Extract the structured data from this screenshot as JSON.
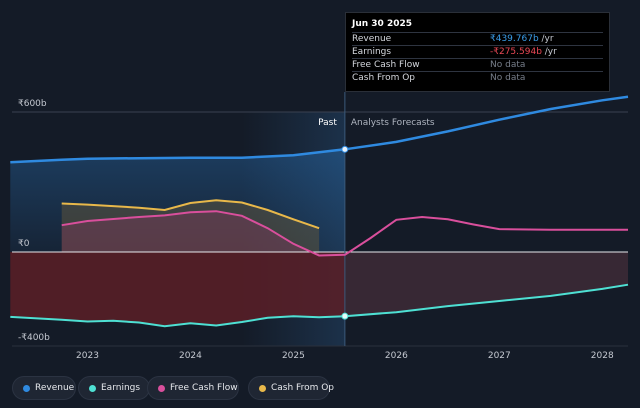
{
  "tooltip": {
    "date": "Jun 30 2025",
    "rows": [
      {
        "label": "Revenue",
        "value": "₹439.767b",
        "unit": " /yr"
      },
      {
        "label": "Earnings",
        "value": "-₹275.594b",
        "unit": " /yr"
      },
      {
        "label": "Free Cash Flow",
        "value": "No data",
        "unit": ""
      },
      {
        "label": "Cash From Op",
        "value": "No data",
        "unit": ""
      }
    ]
  },
  "legend": [
    {
      "label": "Revenue",
      "color": "#2f8ae0"
    },
    {
      "label": "Earnings",
      "color": "#4ee0d3"
    },
    {
      "label": "Free Cash Flow",
      "color": "#d94f9c"
    },
    {
      "label": "Cash From Op",
      "color": "#e8b84a"
    }
  ],
  "chart_data": {
    "type": "area",
    "ylim": [
      -480,
      640
    ],
    "y_ticks": [
      {
        "value": 600,
        "label": "₹600b"
      },
      {
        "value": 0,
        "label": "₹0"
      },
      {
        "value": -400,
        "label": "-₹400b"
      }
    ],
    "x_ticks": [
      {
        "value": 2023,
        "label": "2023"
      },
      {
        "value": 2024,
        "label": "2024"
      },
      {
        "value": 2025,
        "label": "2025"
      },
      {
        "value": 2026,
        "label": "2026"
      },
      {
        "value": 2027,
        "label": "2027"
      },
      {
        "value": 2028,
        "label": "2028"
      }
    ],
    "xlim": [
      2022.5,
      2028.25
    ],
    "divider_x": 2025.5,
    "shade_start_x": 2024.5,
    "past_label": "Past",
    "forecast_label": "Analysts Forecasts",
    "series": [
      {
        "name": "Revenue",
        "color": "#2f8ae0",
        "x": [
          2022.25,
          2022.75,
          2023.0,
          2023.5,
          2024.0,
          2024.5,
          2025.0,
          2025.5,
          2026.0,
          2026.5,
          2027.0,
          2027.5,
          2028.0,
          2028.25
        ],
        "y": [
          385,
          395,
          400,
          402,
          404,
          404,
          415,
          440,
          472,
          517,
          567,
          613,
          650,
          665
        ]
      },
      {
        "name": "Earnings",
        "color": "#4ee0d3",
        "x": [
          2022.25,
          2022.75,
          2023.0,
          2023.25,
          2023.5,
          2023.75,
          2024.0,
          2024.25,
          2024.5,
          2024.75,
          2025.0,
          2025.25,
          2025.5,
          2026.0,
          2026.5,
          2027.0,
          2027.5,
          2028.0,
          2028.25
        ],
        "y": [
          -278,
          -290,
          -298,
          -295,
          -302,
          -318,
          -305,
          -315,
          -300,
          -282,
          -275,
          -280,
          -275,
          -258,
          -232,
          -210,
          -188,
          -158,
          -140
        ]
      },
      {
        "name": "Free Cash Flow",
        "color": "#d94f9c",
        "x": [
          2022.75,
          2023.0,
          2023.5,
          2023.75,
          2024.0,
          2024.25,
          2024.5,
          2024.75,
          2025.0,
          2025.25,
          2025.5,
          2025.75,
          2026.0,
          2026.25,
          2026.5,
          2026.75,
          2027.0,
          2027.5,
          2028.0,
          2028.25
        ],
        "y": [
          115,
          133,
          150,
          157,
          170,
          175,
          155,
          102,
          35,
          -15,
          -12,
          60,
          138,
          150,
          140,
          118,
          98,
          95,
          95,
          95
        ]
      },
      {
        "name": "Cash From Op",
        "color": "#e8b84a",
        "x": [
          2022.75,
          2023.0,
          2023.5,
          2023.75,
          2024.0,
          2024.25,
          2024.5,
          2024.75,
          2025.0,
          2025.25
        ],
        "y": [
          208,
          203,
          190,
          180,
          210,
          222,
          212,
          180,
          140,
          102
        ]
      }
    ]
  }
}
